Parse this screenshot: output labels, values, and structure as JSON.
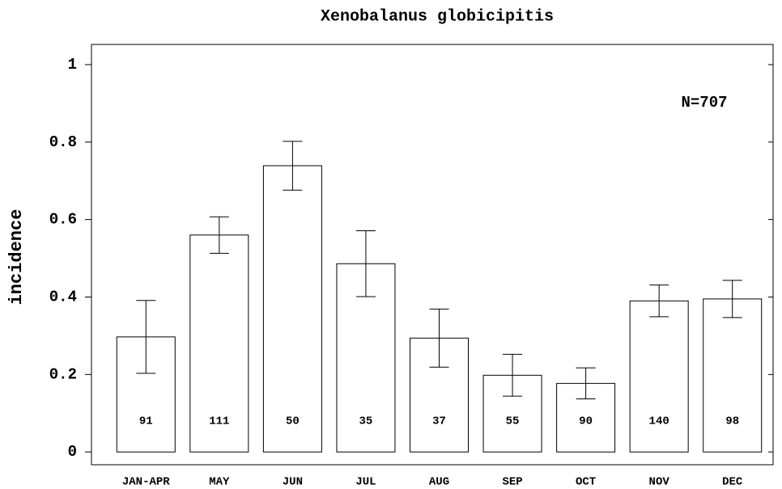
{
  "chart_data": {
    "type": "bar",
    "title": "Xenobalanus globicipitis",
    "y_label": "incidence",
    "annotation": "N=707",
    "categories": [
      "JAN-APR",
      "MAY",
      "JUN",
      "JUL",
      "AUG",
      "SEP",
      "OCT",
      "NOV",
      "DEC"
    ],
    "values": [
      0.297,
      0.56,
      0.739,
      0.486,
      0.294,
      0.198,
      0.177,
      0.39,
      0.395
    ],
    "errors": [
      0.094,
      0.047,
      0.063,
      0.085,
      0.075,
      0.054,
      0.04,
      0.041,
      0.048
    ],
    "counts": [
      91,
      111,
      50,
      35,
      37,
      55,
      90,
      140,
      98
    ],
    "color": "#ffffff",
    "ylim": [
      -0.033,
      1.052
    ],
    "yticks": [
      0,
      0.2,
      0.4,
      0.6,
      0.8,
      1
    ],
    "grid": false
  }
}
